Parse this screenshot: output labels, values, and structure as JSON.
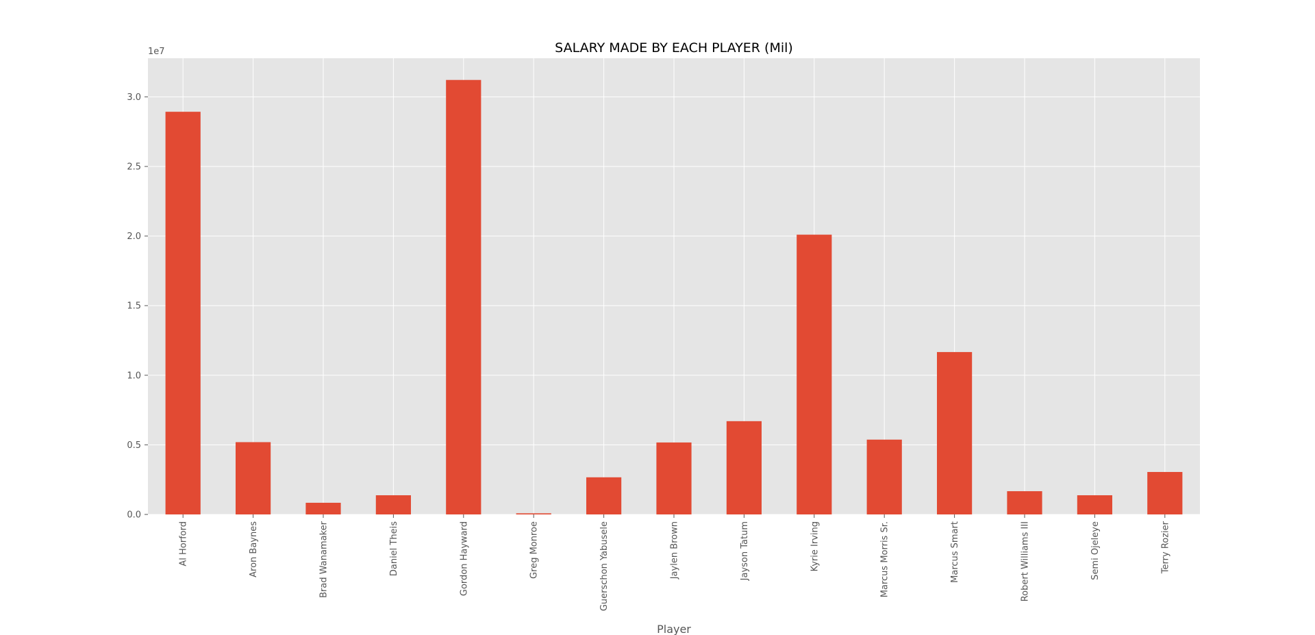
{
  "chart_data": {
    "type": "bar",
    "title": "SALARY MADE BY EACH PLAYER (Mil)",
    "xlabel": "Player",
    "ylabel": "",
    "offset_label": "1e7",
    "categories": [
      "Al Horford",
      "Aron Baynes",
      "Brad Wanamaker",
      "Daniel Theis",
      "Gordon Hayward",
      "Greg Monroe",
      "Guerschon Yabusele",
      "Jaylen Brown",
      "Jayson Tatum",
      "Kyrie Irving",
      "Marcus Morris Sr.",
      "Marcus Smart",
      "Robert Williams III",
      "Semi Ojeleye",
      "Terry Rozier"
    ],
    "values": [
      28928709,
      5193600,
      838464,
      1378242,
      31214295,
      80000,
      2667600,
      5169960,
      6700800,
      20099189,
      5375000,
      11666667,
      1670040,
      1378242,
      3050389
    ],
    "yticks": [
      {
        "value": 0,
        "label": "0.0"
      },
      {
        "value": 5000000,
        "label": "0.5"
      },
      {
        "value": 10000000,
        "label": "1.0"
      },
      {
        "value": 15000000,
        "label": "1.5"
      },
      {
        "value": 20000000,
        "label": "2.0"
      },
      {
        "value": 25000000,
        "label": "2.5"
      },
      {
        "value": 30000000,
        "label": "3.0"
      }
    ],
    "ylim": [
      0,
      32775000
    ],
    "grid": true,
    "colors": {
      "bar": "#E24A33",
      "plot_background": "#E5E5E5",
      "grid": "#FFFFFF",
      "tick_text": "#555555",
      "title_text": "#000000"
    }
  }
}
